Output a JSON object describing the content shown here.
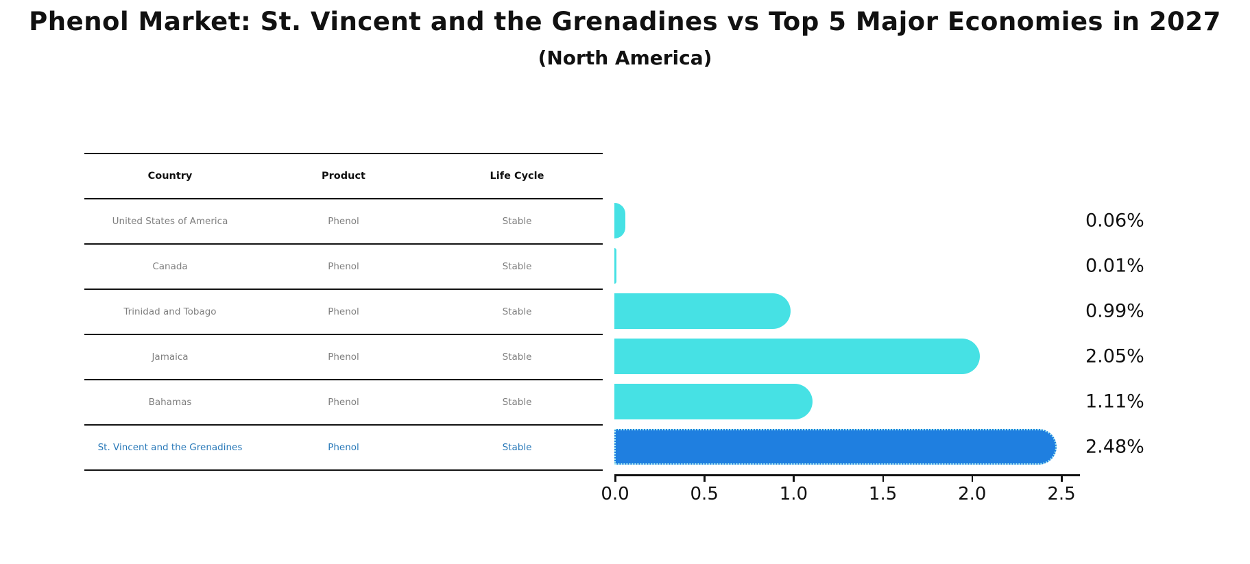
{
  "title": "Phenol Market: St. Vincent and the Grenadines vs Top 5 Major Economies in 2027",
  "subtitle": "(North America)",
  "table": {
    "columns": [
      "Country",
      "Product",
      "Life Cycle"
    ],
    "rows": [
      {
        "country": "United States of America",
        "product": "Phenol",
        "life_cycle": "Stable",
        "value": 0.06,
        "label": "0.06%",
        "highlight": false
      },
      {
        "country": "Canada",
        "product": "Phenol",
        "life_cycle": "Stable",
        "value": 0.01,
        "label": "0.01%",
        "highlight": false
      },
      {
        "country": "Trinidad and Tobago",
        "product": "Phenol",
        "life_cycle": "Stable",
        "value": 0.99,
        "label": "0.99%",
        "highlight": false
      },
      {
        "country": "Jamaica",
        "product": "Phenol",
        "life_cycle": "Stable",
        "value": 2.05,
        "label": "2.05%",
        "highlight": false
      },
      {
        "country": "Bahamas",
        "product": "Phenol",
        "life_cycle": "Stable",
        "value": 1.11,
        "label": "1.11%",
        "highlight": false
      },
      {
        "country": "St. Vincent and the Grenadines",
        "product": "Phenol",
        "life_cycle": "Stable",
        "value": 2.48,
        "label": "2.48%",
        "highlight": true
      }
    ]
  },
  "chart_data": {
    "type": "bar",
    "orientation": "horizontal",
    "title": "Phenol Market: St. Vincent and the Grenadines vs Top 5 Major Economies in 2027",
    "subtitle": "(North America)",
    "categories": [
      "United States of America",
      "Canada",
      "Trinidad and Tobago",
      "Jamaica",
      "Bahamas",
      "St. Vincent and the Grenadines"
    ],
    "values": [
      0.06,
      0.01,
      0.99,
      2.05,
      1.11,
      2.48
    ],
    "data_labels": [
      "0.06%",
      "0.01%",
      "0.99%",
      "2.05%",
      "1.11%",
      "2.48%"
    ],
    "xlabel": "",
    "ylabel": "",
    "x_tick_labels": [
      "0.0",
      "0.5",
      "1.0",
      "1.5",
      "2.0",
      "2.5"
    ],
    "xlim": [
      0,
      2.6
    ],
    "grid": false,
    "legend": false,
    "bar_color": "#46E1E4",
    "highlight_color": "#1F7FE0",
    "highlight_index": 5,
    "unit": "%"
  },
  "colors": {
    "bar_cyan": "#46E1E4",
    "bar_blue": "#1F7FE0",
    "highlight_text": "#2878b8",
    "table_text": "#7f7f7f",
    "axis": "#111111"
  }
}
